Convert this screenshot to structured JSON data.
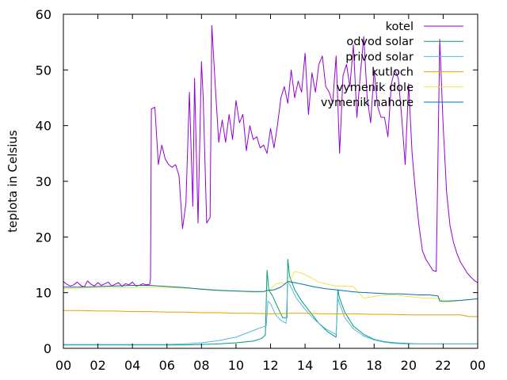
{
  "chart_data": {
    "type": "line",
    "title": "",
    "xlabel": "",
    "ylabel": "teplota in Celsius",
    "xlim": [
      0,
      24
    ],
    "ylim": [
      0,
      60
    ],
    "x_ticks": [
      "00",
      "02",
      "04",
      "06",
      "08",
      "10",
      "12",
      "14",
      "16",
      "18",
      "20",
      "22",
      "00"
    ],
    "y_ticks": [
      "0",
      "10",
      "20",
      "30",
      "40",
      "50",
      "60"
    ],
    "grid": false,
    "legend_position": "top-right",
    "series": [
      {
        "name": "kotel",
        "color": "#9400d3",
        "x": [
          0,
          0.2,
          0.4,
          0.6,
          0.8,
          1.0,
          1.2,
          1.4,
          1.6,
          1.8,
          2.0,
          2.2,
          2.4,
          2.6,
          2.8,
          3.0,
          3.2,
          3.4,
          3.6,
          3.8,
          4.0,
          4.2,
          4.4,
          4.6,
          4.8,
          5.0,
          5.05,
          5.1,
          5.3,
          5.5,
          5.7,
          5.9,
          6.1,
          6.3,
          6.5,
          6.7,
          6.9,
          7.1,
          7.3,
          7.5,
          7.6,
          7.8,
          8.0,
          8.1,
          8.3,
          8.5,
          8.6,
          8.8,
          9.0,
          9.2,
          9.4,
          9.6,
          9.8,
          10.0,
          10.2,
          10.4,
          10.6,
          10.8,
          11.0,
          11.2,
          11.4,
          11.6,
          11.8,
          12.0,
          12.2,
          12.4,
          12.6,
          12.8,
          13.0,
          13.2,
          13.4,
          13.6,
          13.8,
          14.0,
          14.2,
          14.4,
          14.6,
          14.8,
          15.0,
          15.2,
          15.4,
          15.6,
          15.8,
          16.0,
          16.2,
          16.4,
          16.6,
          16.8,
          17.0,
          17.2,
          17.4,
          17.6,
          17.8,
          18.0,
          18.2,
          18.4,
          18.6,
          18.8,
          19.0,
          19.2,
          19.4,
          19.6,
          19.8,
          20.0,
          20.2,
          20.4,
          20.6,
          20.8,
          21.0,
          21.2,
          21.4,
          21.6,
          21.8,
          22.0,
          22.2,
          22.4,
          22.6,
          22.8,
          23.0,
          23.2,
          23.4,
          23.6,
          23.8,
          24.0
        ],
        "y": [
          12.0,
          11.5,
          11.2,
          11.4,
          11.9,
          11.3,
          11.0,
          12.1,
          11.5,
          11.2,
          11.8,
          11.3,
          11.6,
          11.9,
          11.2,
          11.5,
          11.8,
          11.1,
          11.6,
          11.4,
          11.9,
          11.2,
          11.3,
          11.6,
          11.4,
          11.5,
          12.5,
          43.0,
          43.3,
          33.0,
          36.5,
          34.0,
          33.0,
          32.5,
          33.0,
          31.0,
          21.5,
          26.0,
          46.0,
          25.5,
          48.5,
          22.5,
          51.5,
          45.0,
          22.5,
          23.5,
          58.0,
          47.0,
          37.0,
          41.0,
          37.0,
          42.0,
          37.5,
          44.5,
          40.5,
          42.0,
          35.5,
          40.0,
          37.5,
          38.0,
          36.0,
          36.5,
          35.0,
          39.5,
          36.0,
          40.0,
          45.0,
          47.0,
          44.0,
          50.0,
          45.0,
          48.0,
          46.0,
          53.0,
          42.0,
          49.5,
          46.0,
          51.0,
          52.5,
          47.0,
          46.0,
          44.0,
          52.5,
          35.0,
          49.0,
          51.0,
          47.0,
          54.5,
          41.5,
          49.0,
          56.0,
          45.0,
          40.5,
          50.0,
          43.5,
          41.5,
          41.5,
          38.0,
          47.5,
          50.0,
          48.5,
          41.5,
          33.0,
          47.5,
          35.0,
          28.0,
          22.0,
          17.5,
          16.0,
          15.0,
          14.0,
          13.8,
          55.5,
          40.0,
          28.0,
          22.0,
          19.0,
          17.0,
          15.5,
          14.5,
          13.5,
          12.8,
          12.2,
          11.8
        ]
      },
      {
        "name": "odvod solar",
        "color": "#009e73",
        "x": [
          0,
          2,
          4,
          6,
          7,
          8,
          9,
          10,
          11,
          11.5,
          11.7,
          11.8,
          11.9,
          12.1,
          12.4,
          12.7,
          12.95,
          13.0,
          13.1,
          13.4,
          13.8,
          14.3,
          14.8,
          15.3,
          15.8,
          15.9,
          16.0,
          16.3,
          16.8,
          17.4,
          18.0,
          18.6,
          19.2,
          19.8,
          20.5,
          21.5,
          22.5,
          24.0
        ],
        "y": [
          0.6,
          0.6,
          0.6,
          0.6,
          0.6,
          0.7,
          0.8,
          1.0,
          1.3,
          1.8,
          2.4,
          14.0,
          10.5,
          9.5,
          7.5,
          5.5,
          5.5,
          16.0,
          13.0,
          10.5,
          8.5,
          6.5,
          4.5,
          3.0,
          2.0,
          10.5,
          9.0,
          6.5,
          4.0,
          2.5,
          1.6,
          1.2,
          1.0,
          0.9,
          0.8,
          0.8,
          0.8,
          0.8
        ]
      },
      {
        "name": "privod solar",
        "color": "#56b4e9",
        "x": [
          0,
          2,
          4,
          6,
          7,
          8,
          9,
          10,
          11,
          11.5,
          11.75,
          11.85,
          12.0,
          12.3,
          12.6,
          12.9,
          13.0,
          13.1,
          13.5,
          14.0,
          14.6,
          15.2,
          15.8,
          15.9,
          16.0,
          16.3,
          16.8,
          17.4,
          18.0,
          18.6,
          19.2,
          19.8,
          20.5,
          21.5,
          22.5,
          24.0
        ],
        "y": [
          0.7,
          0.7,
          0.7,
          0.7,
          0.8,
          1.0,
          1.4,
          2.0,
          3.2,
          3.8,
          4.0,
          8.5,
          8.0,
          6.0,
          5.0,
          4.5,
          12.0,
          11.5,
          9.0,
          7.0,
          5.0,
          3.5,
          2.5,
          9.0,
          8.0,
          5.5,
          3.5,
          2.2,
          1.5,
          1.1,
          0.9,
          0.8,
          0.8,
          0.8,
          0.8,
          0.8
        ]
      },
      {
        "name": "kutloch",
        "color": "#e69f00",
        "x": [
          0,
          1,
          2,
          3,
          4,
          5,
          6,
          7,
          8,
          9,
          10,
          11,
          12,
          13,
          14,
          15,
          16,
          17,
          18,
          19,
          20,
          21,
          22,
          23,
          23.5,
          24.0
        ],
        "y": [
          6.8,
          6.8,
          6.7,
          6.7,
          6.6,
          6.6,
          6.5,
          6.5,
          6.4,
          6.4,
          6.3,
          6.3,
          6.2,
          6.3,
          6.3,
          6.2,
          6.2,
          6.2,
          6.1,
          6.1,
          6.0,
          6.0,
          6.0,
          6.0,
          5.7,
          5.7
        ]
      },
      {
        "name": "vymenik dole",
        "color": "#f0e442",
        "x": [
          0,
          2,
          4,
          5,
          6,
          8,
          10,
          11,
          11.8,
          12.3,
          12.6,
          12.9,
          13.1,
          13.4,
          13.8,
          14.3,
          14.8,
          15.3,
          15.8,
          16.3,
          16.8,
          17.1,
          17.4,
          17.8,
          18.5,
          19.2,
          20.0,
          21.0,
          21.8,
          22.0,
          23.0,
          24.0
        ],
        "y": [
          10.7,
          10.9,
          10.9,
          11.0,
          10.9,
          10.7,
          10.3,
          10.1,
          10.2,
          11.5,
          11.8,
          11.5,
          12.0,
          13.8,
          13.5,
          12.8,
          11.9,
          11.5,
          11.2,
          11.2,
          11.1,
          10.0,
          9.0,
          9.2,
          9.6,
          9.6,
          9.3,
          9.0,
          9.0,
          8.2,
          8.6,
          8.9
        ]
      },
      {
        "name": "vymenik nahore",
        "color": "#0072b2",
        "x": [
          0,
          1,
          2,
          3,
          4,
          5,
          6,
          7,
          8,
          9,
          10,
          11,
          11.6,
          11.8,
          12.2,
          12.6,
          13.0,
          13.4,
          14.0,
          14.6,
          15.2,
          15.8,
          16.4,
          17.0,
          17.6,
          18.2,
          18.8,
          19.4,
          20.0,
          20.6,
          21.2,
          21.7,
          21.8,
          22.3,
          23.0,
          24.0
        ],
        "y": [
          11.0,
          11.0,
          11.1,
          11.2,
          11.3,
          11.3,
          11.1,
          10.9,
          10.6,
          10.4,
          10.3,
          10.2,
          10.2,
          10.4,
          10.5,
          11.0,
          12.0,
          11.8,
          11.4,
          11.0,
          10.7,
          10.5,
          10.3,
          10.1,
          10.0,
          9.9,
          9.8,
          9.8,
          9.7,
          9.6,
          9.6,
          9.4,
          8.5,
          8.5,
          8.6,
          8.9
        ]
      }
    ]
  }
}
